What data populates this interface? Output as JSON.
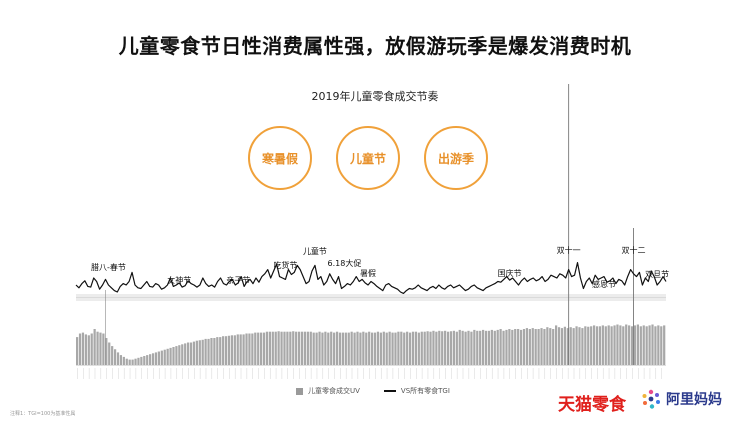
{
  "headline": "儿童零食节日性消费属性强，放假游玩季是爆发消费时机",
  "badges": [
    "寒暑假",
    "儿童节",
    "出游季"
  ],
  "chart_data": {
    "type": "line+bar",
    "title": "2019年儿童零食成交节奏",
    "legend": [
      {
        "name": "儿童零食成交UV",
        "kind": "bar"
      },
      {
        "name": "VS所有零食TGI",
        "kind": "line"
      }
    ],
    "annotations": [
      {
        "label": "腊八-春节",
        "x": 0.055
      },
      {
        "label": "女神节",
        "x": 0.175
      },
      {
        "label": "亲子节",
        "x": 0.275
      },
      {
        "label": "吃货节",
        "x": 0.355
      },
      {
        "label": "儿童节",
        "x": 0.405
      },
      {
        "label": "6.18大促",
        "x": 0.455
      },
      {
        "label": "暑假",
        "x": 0.495
      },
      {
        "label": "国庆节",
        "x": 0.735
      },
      {
        "label": "双十一",
        "x": 0.835
      },
      {
        "label": "感恩节",
        "x": 0.895
      },
      {
        "label": "双十二",
        "x": 0.945
      },
      {
        "label": "双旦节",
        "x": 0.985
      }
    ],
    "tgi_line": [
      0.5,
      0.46,
      0.52,
      0.56,
      0.48,
      0.47,
      0.6,
      0.55,
      0.44,
      0.5,
      0.58,
      0.5,
      0.46,
      0.42,
      0.4,
      0.48,
      0.52,
      0.5,
      0.55,
      0.68,
      0.5,
      0.46,
      0.45,
      0.5,
      0.55,
      0.48,
      0.47,
      0.52,
      0.5,
      0.44,
      0.46,
      0.5,
      0.6,
      0.48,
      0.5,
      0.53,
      0.47,
      0.49,
      0.56,
      0.52,
      0.5,
      0.47,
      0.5,
      0.6,
      0.52,
      0.48,
      0.5,
      0.47,
      0.55,
      0.6,
      0.52,
      0.5,
      0.55,
      0.58,
      0.5,
      0.53,
      0.62,
      0.48,
      0.55,
      0.58,
      0.52,
      0.6,
      0.54,
      0.62,
      0.66,
      0.72,
      0.6,
      0.7,
      0.8,
      0.62,
      0.6,
      0.58,
      0.72,
      0.65,
      0.68,
      0.78,
      0.72,
      0.62,
      0.52,
      0.55,
      0.7,
      0.78,
      0.58,
      0.62,
      0.5,
      0.55,
      0.66,
      0.58,
      0.52,
      0.62,
      0.45,
      0.48,
      0.52,
      0.5,
      0.55,
      0.62,
      0.55,
      0.58,
      0.53,
      0.5,
      0.55,
      0.52,
      0.48,
      0.45,
      0.42,
      0.5,
      0.52,
      0.48,
      0.46,
      0.44,
      0.4,
      0.38,
      0.42,
      0.45,
      0.44,
      0.46,
      0.5,
      0.46,
      0.44,
      0.42,
      0.46,
      0.48,
      0.45,
      0.5,
      0.46,
      0.44,
      0.48,
      0.5,
      0.46,
      0.48,
      0.5,
      0.46,
      0.42,
      0.44,
      0.48,
      0.5,
      0.46,
      0.44,
      0.42,
      0.46,
      0.48,
      0.5,
      0.52,
      0.55,
      0.54,
      0.58,
      0.62,
      0.57,
      0.6,
      0.55,
      0.5,
      0.56,
      0.6,
      0.55,
      0.58,
      0.6,
      0.56,
      0.58,
      0.62,
      0.55,
      0.58,
      0.64,
      0.62,
      0.6,
      0.66,
      0.64,
      0.6,
      0.72,
      0.62,
      0.64,
      0.82,
      0.6,
      0.45,
      0.55,
      0.6,
      0.52,
      0.64,
      0.58,
      0.6,
      0.62,
      0.54,
      0.56,
      0.6,
      0.52,
      0.58,
      0.56,
      0.5,
      0.62,
      0.72,
      0.66,
      0.62,
      0.68,
      0.5,
      0.6,
      0.55,
      0.7,
      0.62,
      0.5,
      0.55,
      0.62,
      0.55
    ],
    "uv_bars": [
      0.62,
      0.7,
      0.72,
      0.68,
      0.66,
      0.7,
      0.8,
      0.74,
      0.72,
      0.7,
      0.6,
      0.5,
      0.42,
      0.35,
      0.28,
      0.22,
      0.18,
      0.14,
      0.12,
      0.12,
      0.14,
      0.16,
      0.18,
      0.2,
      0.22,
      0.24,
      0.26,
      0.28,
      0.3,
      0.32,
      0.34,
      0.36,
      0.38,
      0.4,
      0.42,
      0.44,
      0.46,
      0.48,
      0.5,
      0.5,
      0.52,
      0.54,
      0.55,
      0.56,
      0.58,
      0.58,
      0.6,
      0.6,
      0.62,
      0.62,
      0.64,
      0.64,
      0.65,
      0.66,
      0.66,
      0.68,
      0.68,
      0.68,
      0.7,
      0.7,
      0.7,
      0.72,
      0.72,
      0.72,
      0.72,
      0.74,
      0.74,
      0.74,
      0.74,
      0.75,
      0.74,
      0.74,
      0.74,
      0.74,
      0.75,
      0.74,
      0.74,
      0.74,
      0.74,
      0.74,
      0.74,
      0.72,
      0.72,
      0.74,
      0.72,
      0.74,
      0.72,
      0.74,
      0.72,
      0.74,
      0.72,
      0.72,
      0.72,
      0.72,
      0.74,
      0.72,
      0.74,
      0.72,
      0.74,
      0.72,
      0.74,
      0.72,
      0.72,
      0.74,
      0.72,
      0.74,
      0.72,
      0.74,
      0.72,
      0.72,
      0.74,
      0.74,
      0.72,
      0.74,
      0.72,
      0.74,
      0.74,
      0.72,
      0.74,
      0.74,
      0.75,
      0.74,
      0.76,
      0.74,
      0.76,
      0.75,
      0.76,
      0.74,
      0.75,
      0.76,
      0.74,
      0.78,
      0.76,
      0.74,
      0.76,
      0.74,
      0.78,
      0.76,
      0.76,
      0.78,
      0.76,
      0.76,
      0.78,
      0.76,
      0.78,
      0.8,
      0.76,
      0.78,
      0.8,
      0.78,
      0.8,
      0.8,
      0.78,
      0.8,
      0.82,
      0.8,
      0.82,
      0.8,
      0.8,
      0.82,
      0.8,
      0.84,
      0.82,
      0.8,
      0.88,
      0.84,
      0.82,
      0.85,
      0.82,
      0.84,
      0.82,
      0.86,
      0.84,
      0.82,
      0.86,
      0.85,
      0.86,
      0.88,
      0.86,
      0.86,
      0.88,
      0.86,
      0.88,
      0.86,
      0.88,
      0.9,
      0.88,
      0.86,
      0.9,
      0.88,
      0.86,
      0.88,
      0.9,
      0.86,
      0.88,
      0.86,
      0.88,
      0.9,
      0.86,
      0.88,
      0.86,
      0.88
    ],
    "spikes": [
      {
        "name": "双十一",
        "x": 0.835
      },
      {
        "name": "双十二",
        "x": 0.945
      }
    ],
    "jan_spike_x": 0.05
  },
  "footnote": "注释1：TGI=100为基准性属",
  "brands": {
    "tmall": "天猫零食",
    "alimama": "阿里妈妈"
  },
  "colors": {
    "accent": "#f0a13a",
    "tmall_red": "#e0201c",
    "alimama_blue": "#2b3a8c"
  }
}
